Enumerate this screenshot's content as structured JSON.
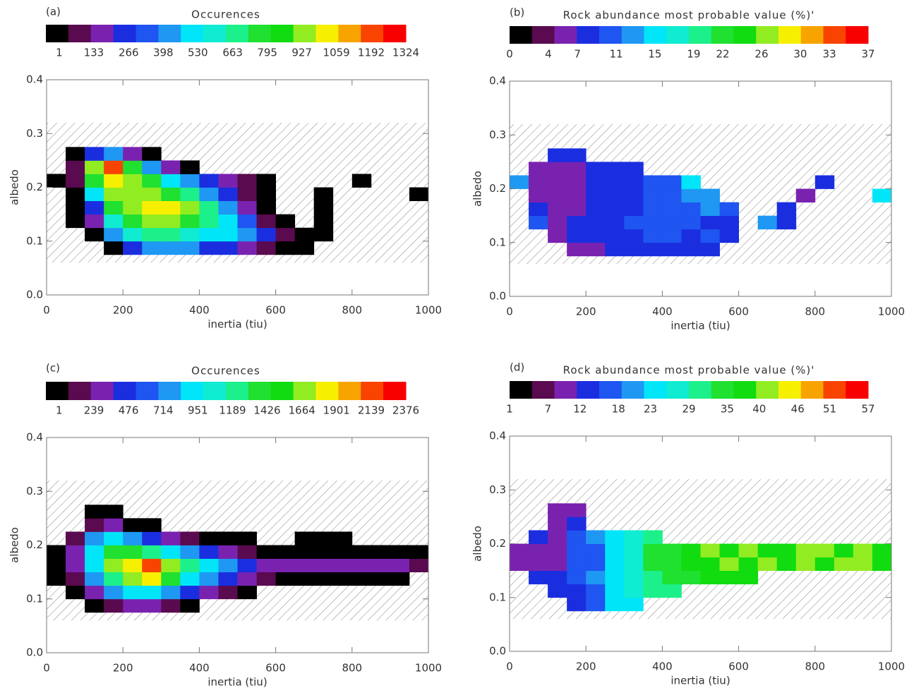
{
  "chart_data": [
    {
      "type": "heatmap",
      "panel_label": "(a)",
      "colorbar_title": "Occurences",
      "colorbar_ticks": [
        1,
        133,
        266,
        398,
        530,
        663,
        795,
        927,
        1059,
        1192,
        1324
      ],
      "clim": [
        -50,
        1324
      ],
      "colors": [
        "#000000",
        "#5a0a4e",
        "#7a22b0",
        "#1a2ee0",
        "#1f55f0",
        "#1e98f2",
        "#00e6f8",
        "#10ecd2",
        "#1cf08a",
        "#20e030",
        "#10dc10",
        "#92ec22",
        "#f6f000",
        "#f8a400",
        "#f84400",
        "#f80000"
      ],
      "xlabel": "inertia (tiu)",
      "ylabel": "albedo",
      "xlim": [
        0,
        1000
      ],
      "ylim": [
        0,
        0.4
      ],
      "xticks": [
        0,
        200,
        400,
        600,
        800,
        1000
      ],
      "yticks": [
        {
          "value": 0,
          "label": "0.0"
        },
        0.1,
        0.2,
        0.3,
        0.4
      ],
      "hatch_band": [
        0.06,
        0.32
      ],
      "x_bins": [
        0,
        50,
        100,
        150,
        200,
        250,
        300,
        350,
        400,
        450,
        500,
        550,
        600,
        650,
        700,
        750,
        800,
        850,
        900,
        950,
        1000
      ],
      "y_bins": [
        0.075,
        0.1,
        0.125,
        0.15,
        0.175,
        0.2,
        0.225,
        0.25,
        0.275
      ],
      "values": [
        [
          null,
          null,
          null,
          5,
          266,
          398,
          398,
          398,
          266,
          266,
          133,
          60,
          5,
          1,
          null,
          null,
          null,
          null,
          null,
          null
        ],
        [
          null,
          null,
          20,
          400,
          600,
          663,
          700,
          600,
          500,
          530,
          400,
          250,
          60,
          5,
          1,
          null,
          null,
          null,
          null,
          null
        ],
        [
          null,
          1,
          133,
          600,
          795,
          927,
          900,
          795,
          663,
          530,
          300,
          100,
          5,
          null,
          1,
          null,
          null,
          null,
          null,
          null
        ],
        [
          null,
          5,
          266,
          795,
          927,
          1059,
          1059,
          927,
          663,
          400,
          133,
          20,
          null,
          null,
          1,
          null,
          null,
          null,
          null,
          null
        ],
        [
          null,
          5,
          530,
          927,
          927,
          927,
          795,
          663,
          400,
          266,
          100,
          5,
          null,
          null,
          1,
          null,
          null,
          null,
          null,
          1
        ],
        [
          5,
          60,
          795,
          1059,
          927,
          795,
          530,
          400,
          266,
          133,
          60,
          1,
          null,
          null,
          null,
          null,
          1,
          null,
          null,
          null
        ],
        [
          null,
          100,
          927,
          1192,
          795,
          400,
          133,
          20,
          null,
          null,
          null,
          null,
          null,
          null,
          null,
          null,
          null,
          null,
          null,
          null
        ],
        [
          null,
          5,
          266,
          400,
          133,
          20,
          null,
          null,
          null,
          null,
          null,
          null,
          null,
          null,
          null,
          null,
          null,
          null,
          null,
          null
        ]
      ]
    },
    {
      "type": "heatmap",
      "panel_label": "(b)",
      "colorbar_title": "Rock abundance most probable value (%)'",
      "colorbar_ticks": [
        0,
        4,
        7,
        11,
        15,
        19,
        22,
        26,
        30,
        33,
        37
      ],
      "clim": [
        0,
        37
      ],
      "colors": [
        "#000000",
        "#5a0a4e",
        "#7a22b0",
        "#1a2ee0",
        "#1f55f0",
        "#1e98f2",
        "#00e6f8",
        "#10ecd2",
        "#1cf08a",
        "#20e030",
        "#10dc10",
        "#92ec22",
        "#f6f000",
        "#f8a400",
        "#f84400",
        "#f80000"
      ],
      "xlabel": "inertia (tiu)",
      "ylabel": "albedo",
      "xlim": [
        0,
        1000
      ],
      "ylim": [
        0,
        0.4
      ],
      "xticks": [
        0,
        200,
        400,
        600,
        800,
        1000
      ],
      "yticks": [
        {
          "value": 0,
          "label": "0.0"
        },
        0.1,
        0.2,
        0.3,
        0.4
      ],
      "hatch_band": [
        0.06,
        0.32
      ],
      "x_bins": [
        0,
        50,
        100,
        150,
        200,
        250,
        300,
        350,
        400,
        450,
        500,
        550,
        600,
        650,
        700,
        750,
        800,
        850,
        900,
        950,
        1000
      ],
      "y_bins": [
        0.075,
        0.1,
        0.125,
        0.15,
        0.175,
        0.2,
        0.225,
        0.25,
        0.275
      ],
      "values": [
        [
          null,
          null,
          null,
          6,
          6,
          7,
          8,
          8,
          9,
          9,
          8,
          null,
          null,
          null,
          null,
          null,
          null,
          null,
          null,
          null
        ],
        [
          null,
          null,
          6,
          7,
          8,
          9,
          9,
          10,
          10,
          9,
          10,
          9,
          null,
          null,
          null,
          null,
          null,
          null,
          null,
          null
        ],
        [
          null,
          11,
          6,
          7,
          8,
          9,
          10,
          10,
          11,
          10,
          9,
          8,
          null,
          12,
          9,
          null,
          null,
          null,
          null,
          null
        ],
        [
          null,
          8,
          5,
          6,
          7,
          8,
          9,
          10,
          10,
          11,
          12,
          11,
          null,
          null,
          9,
          null,
          null,
          null,
          null,
          null
        ],
        [
          null,
          5,
          5,
          6,
          7,
          8,
          9,
          10,
          11,
          12,
          13,
          null,
          null,
          null,
          null,
          5,
          null,
          null,
          null,
          16
        ],
        [
          13,
          5,
          5,
          6,
          7,
          8,
          9,
          10,
          11,
          14,
          null,
          null,
          null,
          null,
          null,
          null,
          9,
          null,
          null,
          null
        ],
        [
          null,
          5,
          5,
          6,
          7,
          8,
          9,
          null,
          null,
          null,
          null,
          null,
          null,
          null,
          null,
          null,
          null,
          null,
          null,
          null
        ],
        [
          null,
          null,
          7,
          7,
          null,
          null,
          null,
          null,
          null,
          null,
          null,
          null,
          null,
          null,
          null,
          null,
          null,
          null,
          null,
          null
        ]
      ]
    },
    {
      "type": "heatmap",
      "panel_label": "(c)",
      "colorbar_title": "Occurences",
      "colorbar_ticks": [
        1,
        239,
        476,
        714,
        951,
        1189,
        1426,
        1664,
        1901,
        2139,
        2376
      ],
      "clim": [
        -90,
        2376
      ],
      "colors": [
        "#000000",
        "#5a0a4e",
        "#7a22b0",
        "#1a2ee0",
        "#1f55f0",
        "#1e98f2",
        "#00e6f8",
        "#10ecd2",
        "#1cf08a",
        "#20e030",
        "#10dc10",
        "#92ec22",
        "#f6f000",
        "#f8a400",
        "#f84400",
        "#f80000"
      ],
      "xlabel": "inertia (tiu)",
      "ylabel": "albedo",
      "xlim": [
        0,
        1000
      ],
      "ylim": [
        0,
        0.4
      ],
      "xticks": [
        0,
        200,
        400,
        600,
        800,
        1000
      ],
      "yticks": [
        {
          "value": 0,
          "label": "0.0"
        },
        0.1,
        0.2,
        0.3,
        0.4
      ],
      "hatch_band": [
        0.06,
        0.32
      ],
      "x_bins": [
        0,
        50,
        100,
        150,
        200,
        250,
        300,
        350,
        400,
        450,
        500,
        550,
        600,
        650,
        700,
        750,
        800,
        850,
        900,
        950,
        1000
      ],
      "y_bins": [
        0.075,
        0.1,
        0.125,
        0.15,
        0.175,
        0.2,
        0.225,
        0.25,
        0.275
      ],
      "values": [
        [
          null,
          null,
          5,
          100,
          239,
          239,
          100,
          5,
          null,
          null,
          null,
          null,
          null,
          null,
          null,
          null,
          null,
          null,
          null,
          null
        ],
        [
          null,
          5,
          239,
          714,
          951,
          951,
          714,
          476,
          239,
          100,
          5,
          null,
          null,
          null,
          null,
          null,
          null,
          null,
          null,
          null
        ],
        [
          1,
          100,
          714,
          1189,
          1664,
          1901,
          1426,
          951,
          714,
          476,
          239,
          100,
          50,
          5,
          5,
          5,
          1,
          1,
          1,
          null
        ],
        [
          5,
          239,
          951,
          1664,
          1901,
          2139,
          1664,
          1189,
          951,
          714,
          476,
          239,
          239,
          239,
          239,
          239,
          239,
          239,
          239,
          100
        ],
        [
          5,
          239,
          951,
          1426,
          1426,
          1189,
          951,
          714,
          476,
          239,
          100,
          50,
          5,
          5,
          5,
          5,
          5,
          5,
          1,
          1
        ],
        [
          null,
          100,
          714,
          951,
          714,
          476,
          239,
          100,
          50,
          5,
          1,
          null,
          null,
          1,
          1,
          1,
          null,
          null,
          null,
          null
        ],
        [
          null,
          null,
          100,
          239,
          50,
          5,
          null,
          null,
          null,
          null,
          null,
          null,
          null,
          null,
          null,
          null,
          null,
          null,
          null,
          null
        ],
        [
          null,
          null,
          1,
          1,
          null,
          null,
          null,
          null,
          null,
          null,
          null,
          null,
          null,
          null,
          null,
          null,
          null,
          null,
          null,
          null
        ]
      ]
    },
    {
      "type": "heatmap",
      "panel_label": "(d)",
      "colorbar_title": "Rock abundance most probable value (%)'",
      "colorbar_ticks": [
        1,
        7,
        12,
        18,
        23,
        29,
        35,
        40,
        46,
        51,
        57
      ],
      "clim": [
        1,
        57
      ],
      "colors": [
        "#000000",
        "#5a0a4e",
        "#7a22b0",
        "#1a2ee0",
        "#1f55f0",
        "#1e98f2",
        "#00e6f8",
        "#10ecd2",
        "#1cf08a",
        "#20e030",
        "#10dc10",
        "#92ec22",
        "#f6f000",
        "#f8a400",
        "#f84400",
        "#f80000"
      ],
      "xlabel": "inertia (tiu)",
      "ylabel": "albedo",
      "xlim": [
        0,
        1000
      ],
      "ylim": [
        0,
        0.4
      ],
      "xticks": [
        0,
        200,
        400,
        600,
        800,
        1000
      ],
      "yticks": [
        {
          "value": 0,
          "label": "0.0"
        },
        0.1,
        0.2,
        0.3,
        0.4
      ],
      "hatch_band": [
        0.06,
        0.32
      ],
      "x_bins": [
        0,
        50,
        100,
        150,
        200,
        250,
        300,
        350,
        400,
        450,
        500,
        550,
        600,
        650,
        700,
        750,
        800,
        850,
        900,
        950,
        1000
      ],
      "y_bins": [
        0.075,
        0.1,
        0.125,
        0.15,
        0.175,
        0.2,
        0.225,
        0.25,
        0.275
      ],
      "values": [
        [
          null,
          null,
          null,
          12,
          15,
          22,
          25,
          null,
          null,
          null,
          null,
          null,
          null,
          null,
          null,
          null,
          null,
          null,
          null,
          null
        ],
        [
          null,
          null,
          14,
          14,
          17,
          22,
          27,
          32,
          30,
          null,
          null,
          null,
          null,
          null,
          null,
          null,
          null,
          null,
          null,
          null
        ],
        [
          null,
          12,
          13,
          16,
          19,
          22,
          27,
          32,
          34,
          35,
          37,
          36,
          38,
          null,
          null,
          null,
          null,
          null,
          null,
          null
        ],
        [
          10,
          10,
          11,
          15,
          18,
          22,
          27,
          33,
          35,
          37,
          38,
          40,
          38,
          40,
          38,
          40,
          38,
          40,
          40,
          38
        ],
        [
          10,
          10,
          11,
          15,
          18,
          22,
          27,
          33,
          35,
          38,
          40,
          38,
          40,
          38,
          38,
          40,
          40,
          38,
          40,
          38
        ],
        [
          null,
          12,
          10,
          15,
          19,
          23,
          27,
          30,
          null,
          null,
          null,
          null,
          null,
          null,
          null,
          null,
          null,
          null,
          null,
          null
        ],
        [
          null,
          null,
          10,
          12,
          null,
          null,
          null,
          null,
          null,
          null,
          null,
          null,
          null,
          null,
          null,
          null,
          null,
          null,
          null,
          null
        ],
        [
          null,
          null,
          11,
          11,
          null,
          null,
          null,
          null,
          null,
          null,
          null,
          null,
          null,
          null,
          null,
          null,
          null,
          null,
          null,
          null
        ]
      ]
    }
  ]
}
